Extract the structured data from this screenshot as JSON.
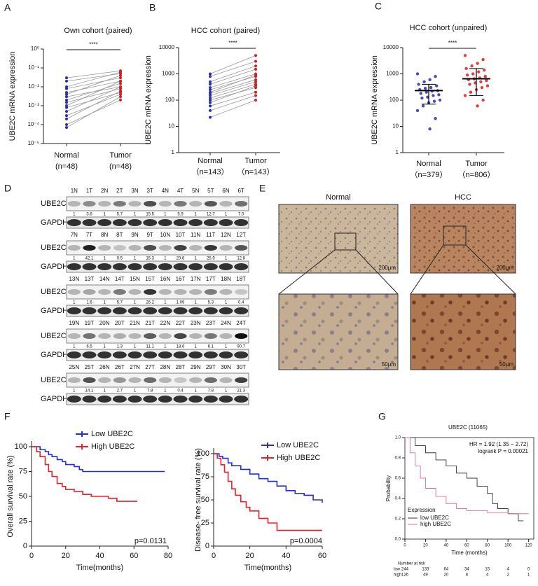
{
  "chart_data": [
    {
      "type": "paired",
      "panel": "A",
      "title": "Own cohort (paired)",
      "ylabel": "UBE2C mRNA expression",
      "categories": [
        "Normal",
        "Tumor"
      ],
      "category_notes": [
        "(n=48)",
        "(n=48)"
      ],
      "colors": [
        "#2b2fa8",
        "#d42020"
      ],
      "significance": "****",
      "log_scale": true,
      "ylim": [
        1e-05,
        1
      ],
      "yticks": [
        {
          "value": 1,
          "label": "10⁰"
        },
        {
          "value": 0.1,
          "label": "10⁻¹"
        },
        {
          "value": 0.01,
          "label": "10⁻²"
        },
        {
          "value": 0.001,
          "label": "10⁻³"
        },
        {
          "value": 0.0001,
          "label": "10⁻⁴"
        },
        {
          "value": 1e-05,
          "label": "10⁻⁵"
        }
      ],
      "values": [
        [
          0.03,
          0.02,
          0.01,
          0.008,
          0.005,
          0.004,
          0.003,
          0.002,
          0.0015,
          0.001,
          0.0008,
          0.0005,
          0.0003,
          0.0002,
          0.0001,
          7e-05
        ],
        [
          0.07,
          0.05,
          0.06,
          0.03,
          0.02,
          0.04,
          0.01,
          0.015,
          0.008,
          0.02,
          0.005,
          0.01,
          0.004,
          0.006,
          0.002,
          0.003
        ]
      ]
    },
    {
      "type": "paired",
      "panel": "B",
      "title": "HCC  cohort (paired)",
      "ylabel": "UBE2C mRNA expression",
      "categories": [
        "Normal",
        "Tumor"
      ],
      "category_notes": [
        "（n=143）",
        "（n=143）"
      ],
      "colors": [
        "#2b2fa8",
        "#d42020"
      ],
      "significance": "****",
      "log_scale": true,
      "ylim": [
        1,
        10000
      ],
      "yticks": [
        1,
        10,
        100,
        1000,
        10000
      ],
      "values": [
        [
          1000,
          800,
          500,
          400,
          300,
          250,
          200,
          180,
          150,
          120,
          100,
          80,
          60,
          40,
          22
        ],
        [
          5000,
          3000,
          2000,
          1500,
          1000,
          800,
          900,
          600,
          500,
          400,
          300,
          350,
          200,
          150,
          100
        ]
      ]
    },
    {
      "type": "dots",
      "panel": "C",
      "title": "HCC  cohort (unpaired)",
      "ylabel": "UBE2C mRNA expression",
      "categories": [
        "Normal",
        "Tumor"
      ],
      "category_notes": [
        "（n=379）",
        "（n=806）"
      ],
      "colors": [
        "#2b2fa8",
        "#d42020"
      ],
      "significance": "****",
      "log_scale": true,
      "ylim": [
        1,
        10000
      ],
      "yticks": [
        1,
        10,
        100,
        1000,
        10000
      ],
      "means": [
        230,
        650
      ],
      "error_low": [
        70,
        150
      ],
      "error_high": [
        400,
        1600
      ],
      "values": [
        [
          1000,
          800,
          600,
          500,
          400,
          350,
          300,
          280,
          250,
          230,
          220,
          200,
          180,
          160,
          150,
          130,
          120,
          100,
          90,
          80,
          60,
          40,
          20,
          8
        ],
        [
          5000,
          3500,
          2500,
          2000,
          1600,
          1400,
          1200,
          1000,
          900,
          800,
          700,
          650,
          600,
          550,
          500,
          450,
          400,
          350,
          300,
          250,
          200,
          150,
          100,
          60
        ]
      ]
    },
    {
      "type": "km",
      "panel": "F",
      "xlabel": "Time(months)",
      "ylabel": "Overall survival rate (%)",
      "annotation": "p=0.0131",
      "xlim": [
        0,
        80
      ],
      "xticks": [
        0,
        20,
        40,
        60,
        80
      ],
      "ylim": [
        0,
        100
      ],
      "yticks": [
        0,
        25,
        50,
        75,
        100
      ],
      "series": [
        {
          "name": "Low UBE2C",
          "color": "#1f2ee0",
          "x": [
            0,
            5,
            8,
            10,
            12,
            15,
            18,
            20,
            25,
            28,
            30,
            78
          ],
          "y": [
            100,
            97,
            95,
            92,
            90,
            87,
            85,
            82,
            80,
            77,
            75,
            75
          ]
        },
        {
          "name": "High UBE2C",
          "color": "#e8202a",
          "x": [
            0,
            3,
            5,
            8,
            10,
            12,
            15,
            18,
            20,
            25,
            30,
            35,
            40,
            45,
            50,
            62
          ],
          "y": [
            100,
            95,
            90,
            82,
            75,
            70,
            63,
            60,
            57,
            55,
            52,
            50,
            50,
            48,
            45,
            45
          ]
        }
      ]
    },
    {
      "type": "km",
      "xlabel": "Time(months)",
      "ylabel": "Disease- free survival rate (%)",
      "annotation": "p=0.0004",
      "xlim": [
        0,
        60
      ],
      "xticks": [
        0,
        20,
        40,
        60
      ],
      "ylim": [
        0,
        100
      ],
      "yticks": [
        0,
        25,
        50,
        75,
        100
      ],
      "series": [
        {
          "name": "Low UBE2C",
          "color": "#1f2ee0",
          "x": [
            0,
            3,
            5,
            8,
            10,
            15,
            20,
            25,
            30,
            35,
            40,
            45,
            50,
            55,
            60
          ],
          "y": [
            100,
            97,
            95,
            90,
            87,
            83,
            78,
            73,
            70,
            65,
            60,
            57,
            55,
            50,
            47
          ]
        },
        {
          "name": "High UBE2C",
          "color": "#e8202a",
          "x": [
            0,
            2,
            4,
            6,
            8,
            10,
            12,
            15,
            18,
            20,
            25,
            30,
            35,
            60
          ],
          "y": [
            100,
            95,
            88,
            80,
            70,
            62,
            55,
            48,
            42,
            38,
            30,
            25,
            17,
            17
          ]
        }
      ]
    },
    {
      "type": "km",
      "panel": "G",
      "title": "UBE2C (11065)",
      "xlabel": "Time (months)",
      "ylabel": "Probability",
      "annotations": [
        "HR = 1.92 (1.35 − 2.72)",
        "logrank P = 0.00021"
      ],
      "legend_title": "Expression",
      "xlim": [
        0,
        125
      ],
      "xticks": [
        0,
        20,
        40,
        60,
        80,
        100,
        120
      ],
      "ylim": [
        0,
        1
      ],
      "yticks": [
        {
          "value": 0,
          "label": "0.0"
        },
        0.2,
        0.4,
        0.6,
        0.8,
        {
          "value": 1,
          "label": "1.0"
        }
      ],
      "series": [
        {
          "name": "low  UBE2C",
          "color": "#333333",
          "x": [
            0,
            10,
            20,
            30,
            40,
            50,
            60,
            70,
            80,
            85,
            90,
            100,
            110,
            115
          ],
          "y": [
            1,
            0.92,
            0.85,
            0.78,
            0.72,
            0.65,
            0.6,
            0.52,
            0.45,
            0.35,
            0.3,
            0.25,
            0.18,
            0.18
          ]
        },
        {
          "name": "high UBE2C",
          "color": "#e07090",
          "x": [
            0,
            5,
            10,
            15,
            20,
            30,
            40,
            50,
            60,
            80,
            100,
            120
          ],
          "y": [
            1,
            0.85,
            0.72,
            0.6,
            0.5,
            0.42,
            0.35,
            0.3,
            0.28,
            0.26,
            0.25,
            0.25
          ]
        }
      ],
      "risk_table": {
        "title": "Number at risk",
        "rows": [
          {
            "label": "low",
            "values": [
              244,
              133,
              64,
              34,
              15,
              4,
              0
            ]
          },
          {
            "label": "high",
            "values": [
              126,
              49,
              20,
              8,
              4,
              2,
              1
            ]
          }
        ]
      }
    }
  ],
  "blot": {
    "panel": "D",
    "row_labels": [
      "UBE2C",
      "GAPDH"
    ],
    "groups": [
      {
        "lanes": [
          "1N",
          "1T",
          "2N",
          "2T",
          "3N",
          "3T",
          "4N",
          "4T",
          "5N",
          "5T",
          "6N",
          "6T"
        ],
        "ratios": [
          "1",
          "3.6",
          "1",
          "5.7",
          "1",
          "15.5",
          "1",
          "5.9",
          "1",
          "12.7",
          "1",
          "7.0"
        ]
      },
      {
        "lanes": [
          "7N",
          "7T",
          "8N",
          "8T",
          "9N",
          "9T",
          "10N",
          "10T",
          "11N",
          "11T",
          "12N",
          "12T"
        ],
        "ratios": [
          "1",
          "42.1",
          "1",
          "0.5",
          "1",
          "15.3",
          "1",
          "20.6",
          "1",
          "25.9",
          "1",
          "12.8"
        ]
      },
      {
        "lanes": [
          "13N",
          "13T",
          "14N",
          "14T",
          "15N",
          "15T",
          "16N",
          "16T",
          "17N",
          "17T",
          "18N",
          "18T"
        ],
        "ratios": [
          "1",
          "1.6",
          "1",
          "5.7",
          "1",
          "26.2",
          "1",
          "1.09",
          "1",
          "5.3",
          "1",
          "0.4"
        ]
      },
      {
        "lanes": [
          "19N",
          "19T",
          "20N",
          "20T",
          "21N",
          "21T",
          "22N",
          "22T",
          "23N",
          "23T",
          "24N",
          "24T"
        ],
        "ratios": [
          "1",
          "6.5",
          "1",
          "1.3",
          "1",
          "11.1",
          "1",
          "18.6",
          "1",
          "6.1",
          "1",
          "90.7"
        ]
      },
      {
        "lanes": [
          "25N",
          "25T",
          "26N",
          "26T",
          "27N",
          "27T",
          "28N",
          "28T",
          "29N",
          "29T",
          "30N",
          "30T"
        ],
        "ratios": [
          "1",
          "14.1",
          "1",
          "2.7",
          "1",
          "7.8",
          "1",
          "0.4",
          "1",
          "7.8",
          "1",
          "21.3"
        ]
      }
    ]
  },
  "ihc": {
    "panel": "E",
    "columns": [
      "Normal",
      "HCC"
    ],
    "scale_top": "200μm",
    "scale_bottom": "50μm"
  }
}
